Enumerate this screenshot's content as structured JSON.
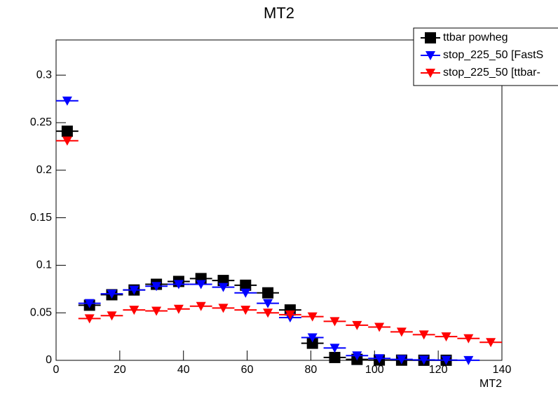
{
  "chart_data": {
    "type": "scatter",
    "title": "MT2",
    "x_label": "MT2",
    "x": [
      3.5,
      10.5,
      17.5,
      24.5,
      31.5,
      38.5,
      45.5,
      52.5,
      59.5,
      66.5,
      73.5,
      80.5,
      87.5,
      94.5,
      101.5,
      108.5,
      115.5,
      122.5,
      129.5,
      136.5
    ],
    "series": [
      {
        "name": "ttbar powheg",
        "color": "#000000",
        "marker": "square",
        "values": [
          0.241,
          0.058,
          0.069,
          0.074,
          0.08,
          0.083,
          0.086,
          0.084,
          0.079,
          0.071,
          0.053,
          0.018,
          0.003,
          0.001,
          0.0003,
          0.0002,
          0.0001,
          0.0001,
          null,
          null
        ]
      },
      {
        "name": "stop_225_50 [FastS",
        "color": "#0000ff",
        "marker": "triangle-down",
        "values": [
          0.273,
          0.06,
          0.07,
          0.074,
          0.078,
          0.08,
          0.08,
          0.077,
          0.071,
          0.06,
          0.045,
          0.024,
          0.013,
          0.005,
          0.002,
          0.001,
          0.0005,
          0.0003,
          0.0001,
          null
        ]
      },
      {
        "name": "stop_225_50 [ttbar-",
        "color": "#ff0000",
        "marker": "triangle-down",
        "values": [
          0.231,
          0.044,
          0.047,
          0.053,
          0.052,
          0.054,
          0.057,
          0.055,
          0.053,
          0.05,
          0.048,
          0.046,
          0.041,
          0.037,
          0.035,
          0.03,
          0.027,
          0.025,
          0.023,
          0.019
        ]
      }
    ],
    "xlim": [
      0,
      140
    ],
    "xticks": [
      0,
      20,
      40,
      60,
      80,
      100,
      120,
      140
    ],
    "ylim": [
      0,
      0.337
    ],
    "yticks": [
      0,
      0.05,
      0.1,
      0.15,
      0.2,
      0.25,
      0.3
    ],
    "grid": false,
    "legend": "top-right"
  }
}
